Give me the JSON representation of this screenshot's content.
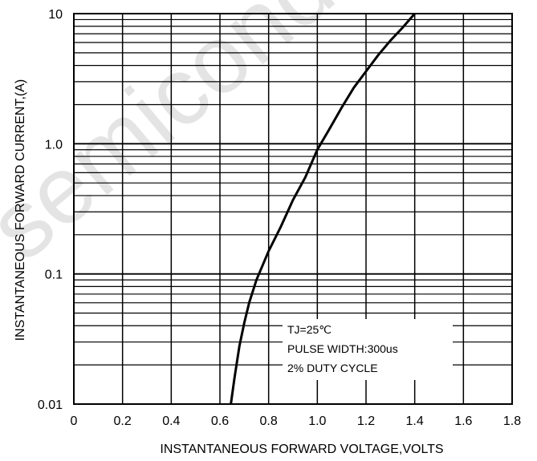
{
  "chart_data": {
    "type": "line",
    "title": "",
    "xlabel": "INSTANTANEOUS FORWARD VOLTAGE,VOLTS",
    "ylabel": "INSTANTANEOUS FORWARD CURRENT,(A)",
    "x_scale": "linear",
    "y_scale": "log",
    "xlim": [
      0,
      1.8
    ],
    "ylim": [
      0.01,
      10
    ],
    "x_ticks": [
      "0",
      "0.2",
      "0.4",
      "0.6",
      "0.8",
      "1.0",
      "1.2",
      "1.4",
      "1.6",
      "1.8"
    ],
    "y_ticks": [
      "0.01",
      "0.1",
      "1.0",
      "10"
    ],
    "grid": true,
    "legend": "none",
    "annotation_lines": [
      "TJ=25℃",
      "PULSE WIDTH:300us",
      "2% DUTY CYCLE"
    ],
    "series": [
      {
        "x": [
          0.645,
          0.66,
          0.68,
          0.7,
          0.72,
          0.75,
          0.8,
          0.85,
          0.9,
          0.95,
          1.0,
          1.05,
          1.1,
          1.15,
          1.2,
          1.25,
          1.3,
          1.35,
          1.4
        ],
        "y": [
          0.01,
          0.016,
          0.028,
          0.042,
          0.06,
          0.09,
          0.15,
          0.23,
          0.37,
          0.55,
          0.9,
          1.3,
          1.9,
          2.7,
          3.6,
          4.8,
          6.2,
          7.8,
          10
        ]
      }
    ],
    "watermark": "semicond",
    "line_color": "#000000"
  }
}
